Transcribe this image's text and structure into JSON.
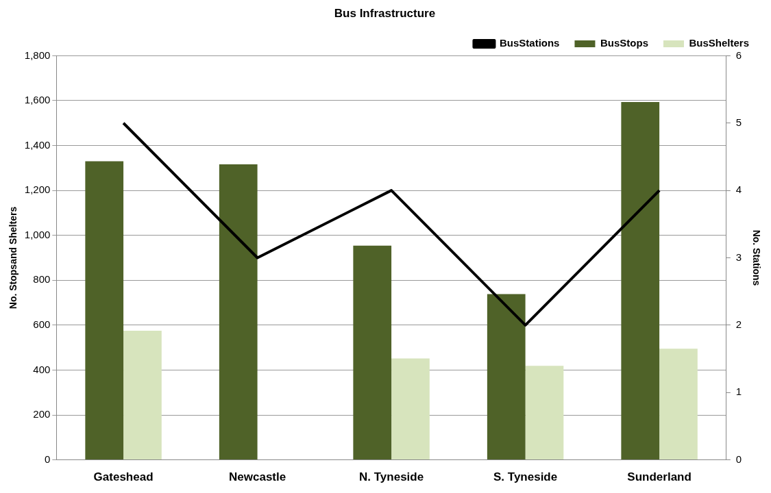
{
  "chart_data": {
    "type": "bar",
    "title": "Bus Infrastructure",
    "ylabel": "No. Stopsand Shelters",
    "y2label": "No. Stations",
    "categories": [
      "Gateshead",
      "Newcastle",
      "N. Tyneside",
      "S. Tyneside",
      "Sunderland"
    ],
    "series": [
      {
        "name": "BusStops",
        "color": "#4f6228",
        "values": [
          1330,
          1316,
          954,
          738,
          1594
        ]
      },
      {
        "name": "BusShelters",
        "color": "#d7e4bd",
        "values": [
          575,
          null,
          452,
          419,
          495
        ]
      },
      {
        "name": "BusStations",
        "type": "line",
        "axis": "y2",
        "color": "#000000",
        "values": [
          5,
          3,
          4,
          2,
          4
        ]
      }
    ],
    "ylim": [
      0,
      1800
    ],
    "yticks": [
      {
        "value": 0,
        "label": "0"
      },
      {
        "value": 200,
        "label": "200"
      },
      {
        "value": 400,
        "label": "400"
      },
      {
        "value": 600,
        "label": "600"
      },
      {
        "value": 800,
        "label": "800"
      },
      {
        "value": 1000,
        "label": "1,000"
      },
      {
        "value": 1200,
        "label": "1,200"
      },
      {
        "value": 1400,
        "label": "1,400"
      },
      {
        "value": 1600,
        "label": "1,600"
      },
      {
        "value": 1800,
        "label": "1,800"
      }
    ],
    "y2lim": [
      0,
      6
    ],
    "y2ticks": [
      0,
      1,
      2,
      3,
      4,
      5,
      6
    ],
    "grid": "y",
    "legend": "top right",
    "marker": "none",
    "line_style": "solid"
  }
}
